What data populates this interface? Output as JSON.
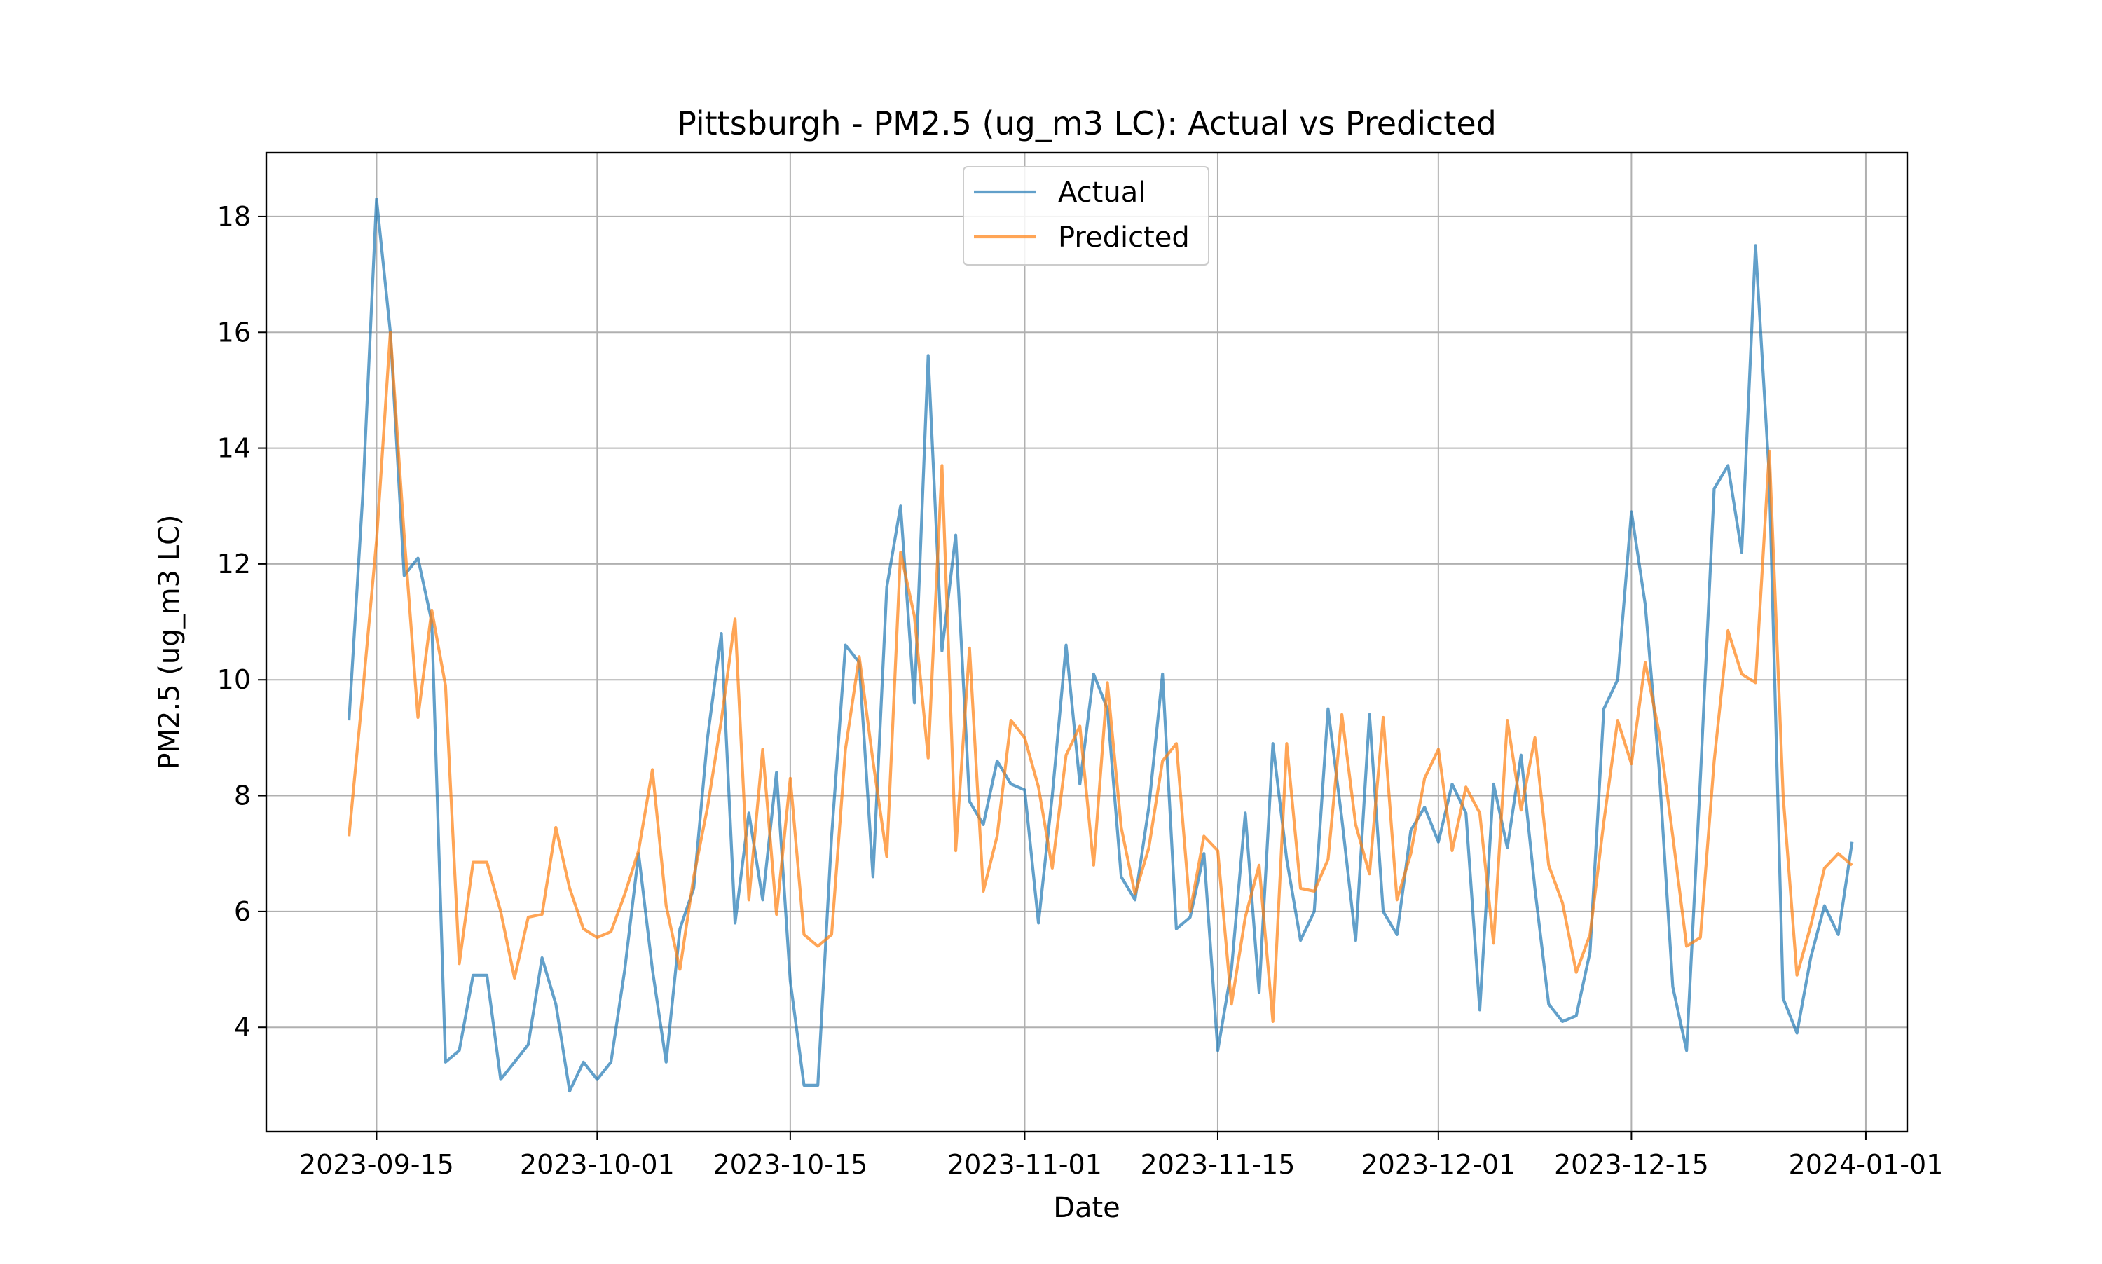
{
  "chart_data": {
    "type": "line",
    "title": "Pittsburgh - PM2.5 (ug_m3 LC): Actual vs Predicted",
    "xlabel": "Date",
    "ylabel": "PM2.5 (ug_m3 LC)",
    "x_tick_labels": [
      "2023-09-15",
      "2023-10-01",
      "2023-10-15",
      "2023-11-01",
      "2023-11-15",
      "2023-12-01",
      "2023-12-15",
      "2024-01-01"
    ],
    "y_ticks": [
      4,
      6,
      8,
      10,
      12,
      14,
      16,
      18
    ],
    "xlim": [
      "2023-09-07",
      "2024-01-04"
    ],
    "ylim": [
      2.2,
      19.1
    ],
    "grid": true,
    "legend_position": "top-center",
    "x": [
      "2023-09-13",
      "2023-09-14",
      "2023-09-15",
      "2023-09-16",
      "2023-09-17",
      "2023-09-18",
      "2023-09-19",
      "2023-09-20",
      "2023-09-21",
      "2023-09-22",
      "2023-09-23",
      "2023-09-24",
      "2023-09-25",
      "2023-09-26",
      "2023-09-27",
      "2023-09-28",
      "2023-09-29",
      "2023-09-30",
      "2023-10-01",
      "2023-10-02",
      "2023-10-03",
      "2023-10-04",
      "2023-10-05",
      "2023-10-06",
      "2023-10-07",
      "2023-10-08",
      "2023-10-09",
      "2023-10-10",
      "2023-10-11",
      "2023-10-12",
      "2023-10-13",
      "2023-10-14",
      "2023-10-15",
      "2023-10-16",
      "2023-10-17",
      "2023-10-18",
      "2023-10-19",
      "2023-10-20",
      "2023-10-21",
      "2023-10-22",
      "2023-10-23",
      "2023-10-24",
      "2023-10-25",
      "2023-10-26",
      "2023-10-27",
      "2023-10-28",
      "2023-10-29",
      "2023-10-30",
      "2023-10-31",
      "2023-11-01",
      "2023-11-02",
      "2023-11-03",
      "2023-11-04",
      "2023-11-05",
      "2023-11-06",
      "2023-11-07",
      "2023-11-08",
      "2023-11-09",
      "2023-11-10",
      "2023-11-11",
      "2023-11-12",
      "2023-11-13",
      "2023-11-14",
      "2023-11-15",
      "2023-11-16",
      "2023-11-17",
      "2023-11-18",
      "2023-11-19",
      "2023-11-20",
      "2023-11-21",
      "2023-11-22",
      "2023-11-23",
      "2023-11-24",
      "2023-11-25",
      "2023-11-26",
      "2023-11-27",
      "2023-11-28",
      "2023-11-29",
      "2023-11-30",
      "2023-12-01",
      "2023-12-02",
      "2023-12-03",
      "2023-12-04",
      "2023-12-05",
      "2023-12-06",
      "2023-12-07",
      "2023-12-08",
      "2023-12-09",
      "2023-12-10",
      "2023-12-11",
      "2023-12-12",
      "2023-12-13",
      "2023-12-14",
      "2023-12-15",
      "2023-12-16",
      "2023-12-17",
      "2023-12-18",
      "2023-12-19",
      "2023-12-20",
      "2023-12-21",
      "2023-12-22",
      "2023-12-23",
      "2023-12-24",
      "2023-12-25",
      "2023-12-26",
      "2023-12-27",
      "2023-12-28",
      "2023-12-29",
      "2023-12-30",
      "2023-12-31"
    ],
    "series": [
      {
        "name": "Actual",
        "color": "#1f77b4",
        "values": [
          9.3,
          13.2,
          18.3,
          16.0,
          11.8,
          12.1,
          11.0,
          3.4,
          3.6,
          4.9,
          4.9,
          3.1,
          3.4,
          3.7,
          5.2,
          4.4,
          2.9,
          3.4,
          3.1,
          3.4,
          5.0,
          7.0,
          5.0,
          3.4,
          5.7,
          6.4,
          9.0,
          10.8,
          5.8,
          7.7,
          6.2,
          8.4,
          4.8,
          3.0,
          3.0,
          7.3,
          10.6,
          10.3,
          6.6,
          11.6,
          13.0,
          9.6,
          15.6,
          10.5,
          12.5,
          7.9,
          7.5,
          8.6,
          8.2,
          8.1,
          5.8,
          8.0,
          10.6,
          8.2,
          10.1,
          9.5,
          6.6,
          6.2,
          7.8,
          10.1,
          5.7,
          5.9,
          7.0,
          3.6,
          5.0,
          7.7,
          4.6,
          8.9,
          6.9,
          5.5,
          6.0,
          9.5,
          7.6,
          5.5,
          9.4,
          6.0,
          5.6,
          7.4,
          7.8,
          7.2,
          8.2,
          7.7,
          4.3,
          8.2,
          7.1,
          8.7,
          6.4,
          4.4,
          4.1,
          4.2,
          5.3,
          9.5,
          10.0,
          12.9,
          11.3,
          8.5,
          4.7,
          3.6,
          8.3,
          13.3,
          13.7,
          12.2,
          17.5,
          13.5,
          4.5,
          3.9,
          5.2,
          6.1,
          5.6,
          7.2
        ]
      },
      {
        "name": "Predicted",
        "color": "#ff7f0e",
        "values": [
          7.3,
          9.8,
          12.4,
          16.0,
          12.5,
          9.35,
          11.2,
          9.9,
          5.1,
          6.85,
          6.85,
          6.0,
          4.85,
          5.9,
          5.95,
          7.45,
          6.4,
          5.7,
          5.55,
          5.65,
          6.3,
          7.05,
          8.45,
          6.1,
          5.0,
          6.6,
          7.8,
          9.3,
          11.05,
          6.2,
          8.8,
          5.95,
          8.3,
          5.6,
          5.4,
          5.6,
          8.8,
          10.4,
          8.6,
          6.95,
          12.2,
          11.1,
          8.65,
          13.7,
          7.05,
          10.55,
          6.35,
          7.3,
          9.3,
          9.0,
          8.15,
          6.75,
          8.7,
          9.2,
          6.8,
          9.95,
          7.45,
          6.3,
          7.1,
          8.6,
          8.9,
          6.0,
          7.3,
          7.05,
          4.4,
          5.9,
          6.8,
          4.1,
          8.9,
          6.4,
          6.35,
          6.9,
          9.4,
          7.5,
          6.65,
          9.35,
          6.2,
          7.0,
          8.3,
          8.8,
          7.05,
          8.15,
          7.7,
          5.45,
          9.3,
          7.75,
          9.0,
          6.8,
          6.15,
          4.95,
          5.6,
          7.55,
          9.3,
          8.55,
          10.3,
          9.1,
          7.3,
          5.4,
          5.55,
          8.6,
          10.85,
          10.1,
          9.95,
          13.95,
          8.0,
          4.9,
          5.75,
          6.75,
          7.0,
          6.8
        ]
      }
    ]
  }
}
